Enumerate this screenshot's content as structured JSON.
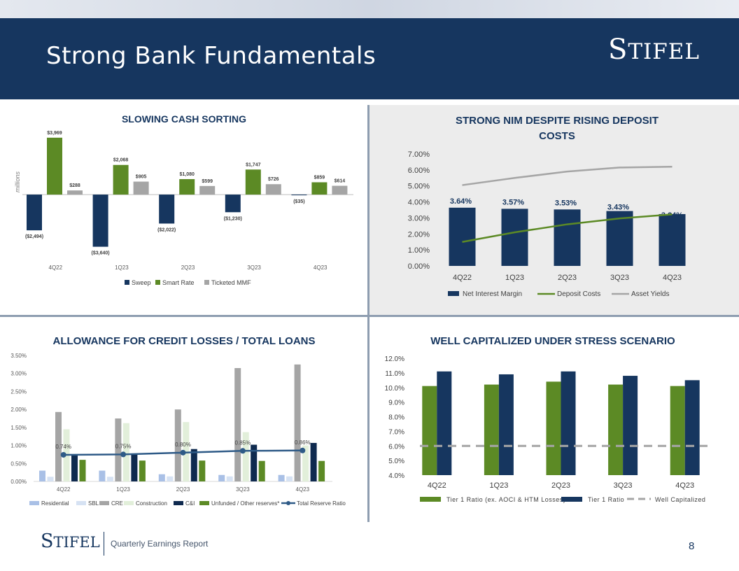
{
  "header": {
    "title": "Strong Bank Fundamentals",
    "logo_first": "S",
    "logo_rest": "TIFEL"
  },
  "footer": {
    "logo_first": "S",
    "logo_rest": "TIFEL",
    "text": "Quarterly Earnings Report",
    "page": "8"
  },
  "colors": {
    "navy": "#16365f",
    "green": "#5c8a25",
    "gray": "#a5a5a5",
    "light_blue": "#b4c6e7",
    "pale_blue": "#dce6f2",
    "pale_green": "#e2efda"
  },
  "chart_data": [
    {
      "id": "cash-sorting",
      "type": "bar",
      "title": "SLOWING CASH SORTING",
      "ylabel": "millions",
      "categories": [
        "4Q22",
        "1Q23",
        "2Q23",
        "3Q23",
        "4Q23"
      ],
      "ylim": [
        -4000,
        4300
      ],
      "series": [
        {
          "name": "Sweep",
          "values": [
            -2494,
            -3640,
            -2022,
            -1230,
            -35
          ],
          "labels": [
            "($2,494)",
            "($3,640)",
            "($2,022)",
            "($1,230)",
            "($35)"
          ]
        },
        {
          "name": "Smart Rate",
          "values": [
            3969,
            2068,
            1080,
            1747,
            859
          ],
          "labels": [
            "$3,969",
            "$2,068",
            "$1,080",
            "$1,747",
            "$859"
          ]
        },
        {
          "name": "Ticketed MMF",
          "values": [
            288,
            905,
            599,
            726,
            614
          ],
          "labels": [
            "$288",
            "$905",
            "$599",
            "$726",
            "$614"
          ]
        }
      ],
      "legend": "bottom"
    },
    {
      "id": "nim",
      "type": "bar",
      "title_lines": [
        "STRONG NIM DESPITE RISING DEPOSIT",
        "COSTS"
      ],
      "categories": [
        "4Q22",
        "1Q23",
        "2Q23",
        "3Q23",
        "4Q23"
      ],
      "ylim": [
        0,
        7
      ],
      "yticks": [
        "0.00%",
        "1.00%",
        "2.00%",
        "3.00%",
        "4.00%",
        "5.00%",
        "6.00%",
        "7.00%"
      ],
      "series": [
        {
          "name": "Net Interest Margin",
          "type": "bar",
          "values": [
            3.64,
            3.57,
            3.53,
            3.43,
            3.24
          ],
          "labels": [
            "3.64%",
            "3.57%",
            "3.53%",
            "3.43%",
            "3.24%"
          ]
        },
        {
          "name": "Deposit Costs",
          "type": "line",
          "values": [
            1.5,
            2.1,
            2.6,
            2.97,
            3.22
          ]
        },
        {
          "name": "Asset Yields",
          "type": "line",
          "values": [
            5.05,
            5.5,
            5.9,
            6.15,
            6.2
          ]
        }
      ],
      "legend": "bottom"
    },
    {
      "id": "acl",
      "type": "bar",
      "title": "ALLOWANCE FOR CREDIT LOSSES / TOTAL LOANS",
      "categories": [
        "4Q22",
        "1Q23",
        "2Q23",
        "3Q23",
        "4Q23"
      ],
      "ylim": [
        0,
        3.5
      ],
      "yticks": [
        "0.00%",
        "0.50%",
        "1.00%",
        "1.50%",
        "2.00%",
        "2.50%",
        "3.00%",
        "3.50%"
      ],
      "series": [
        {
          "name": "Residential",
          "values": [
            0.3,
            0.3,
            0.2,
            0.18,
            0.18
          ]
        },
        {
          "name": "SBL",
          "values": [
            0.13,
            0.13,
            0.14,
            0.14,
            0.14
          ]
        },
        {
          "name": "CRE",
          "values": [
            1.93,
            1.75,
            2.0,
            3.15,
            3.25
          ]
        },
        {
          "name": "Construction",
          "values": [
            1.45,
            1.62,
            1.65,
            1.37,
            1.0
          ]
        },
        {
          "name": "C&I",
          "values": [
            0.75,
            0.75,
            0.9,
            1.02,
            1.07
          ]
        },
        {
          "name": "Unfunded / Other reserves*",
          "values": [
            0.6,
            0.58,
            0.58,
            0.57,
            0.57
          ]
        },
        {
          "name": "Total Reserve Ratio",
          "type": "line",
          "values": [
            0.74,
            0.75,
            0.8,
            0.85,
            0.86
          ],
          "labels": [
            "0.74%",
            "0.75%",
            "0.80%",
            "0.85%",
            "0.86%"
          ]
        }
      ],
      "legend": "bottom"
    },
    {
      "id": "capital",
      "type": "bar",
      "title": "WELL CAPITALIZED UNDER STRESS SCENARIO",
      "categories": [
        "4Q22",
        "1Q23",
        "2Q23",
        "3Q23",
        "4Q23"
      ],
      "ylim": [
        4,
        12
      ],
      "yticks": [
        "4.0%",
        "5.0%",
        "6.0%",
        "7.0%",
        "8.0%",
        "9.0%",
        "10.0%",
        "11.0%",
        "12.0%"
      ],
      "series": [
        {
          "name": "Tier 1 Ratio (ex. AOCI & HTM Losses)",
          "values": [
            10.1,
            10.2,
            10.4,
            10.2,
            10.1
          ]
        },
        {
          "name": "Tier 1 Ratio",
          "values": [
            11.1,
            10.9,
            11.1,
            10.8,
            10.5
          ]
        },
        {
          "name": "Well Capitalized",
          "type": "line",
          "values": [
            6,
            6,
            6,
            6,
            6
          ]
        }
      ],
      "legend": "bottom"
    }
  ]
}
